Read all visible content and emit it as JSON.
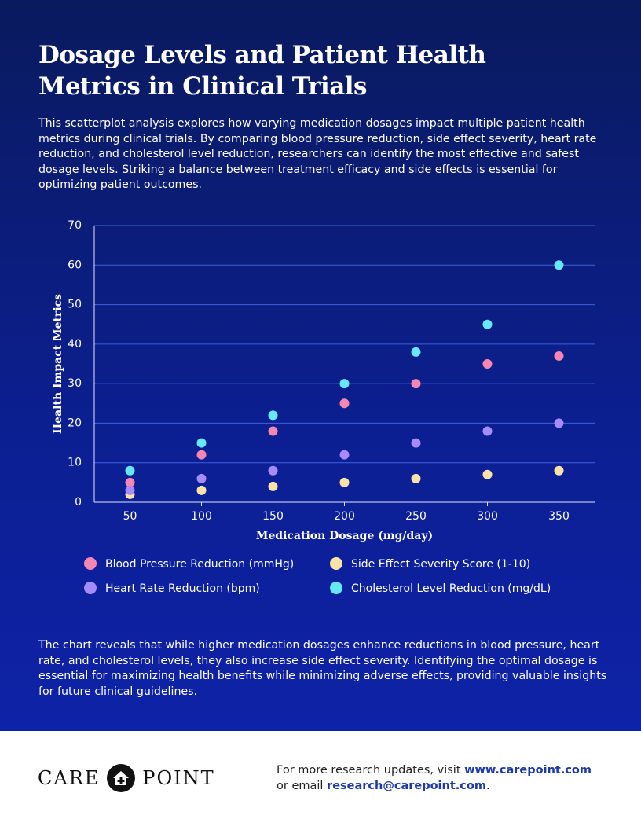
{
  "title": "Dosage Levels and Patient Health Metrics in Clinical Trials",
  "intro": "This scatterplot analysis explores how varying medication dosages impact multiple patient health metrics during clinical trials. By comparing blood pressure reduction, side effect severity, heart rate reduction, and cholesterol level reduction, researchers can identify the most effective and safest dosage levels. Striking a balance between treatment efficacy and side effects is essential for optimizing patient outcomes.",
  "chart_data": {
    "type": "scatter",
    "x_label": "Medication Dosage (mg/day)",
    "y_label": "Health Impact Metrics",
    "x": [
      50,
      100,
      150,
      200,
      250,
      300,
      350
    ],
    "xlim": [
      25,
      375
    ],
    "xticks": [
      50,
      100,
      150,
      200,
      250,
      300,
      350
    ],
    "ylim": [
      0,
      70
    ],
    "yticks": [
      0,
      10,
      20,
      30,
      40,
      50,
      60,
      70
    ],
    "grid": true,
    "legend": "bottom",
    "series": [
      {
        "name": "Blood Pressure Reduction (mmHg)",
        "color": "#f687b3",
        "values": [
          5,
          12,
          18,
          25,
          30,
          35,
          37
        ]
      },
      {
        "name": "Side Effect Severity Score (1-10)",
        "color": "#fbe3a8",
        "values": [
          2,
          3,
          4,
          5,
          6,
          7,
          8
        ]
      },
      {
        "name": "Heart Rate Reduction (bpm)",
        "color": "#a78bfa",
        "values": [
          3,
          6,
          8,
          12,
          15,
          18,
          20
        ]
      },
      {
        "name": "Cholesterol Level Reduction (mg/dL)",
        "color": "#67e8f9",
        "values": [
          8,
          15,
          22,
          30,
          38,
          45,
          60
        ]
      }
    ]
  },
  "conclusion": "The chart reveals that while higher medication dosages enhance reductions in blood pressure, heart rate, and cholesterol levels, they also increase side effect severity. Identifying the optimal dosage is essential for maximizing health benefits while minimizing adverse effects, providing valuable insights for future clinical guidelines.",
  "footer": {
    "logo_left": "CARE",
    "logo_right": "POINT",
    "line1_prefix": "For more research updates, visit",
    "line1_link": "www.carepoint.com",
    "line2_prefix": "or email",
    "line2_link": "research@carepoint.com",
    "line2_suffix": "."
  }
}
